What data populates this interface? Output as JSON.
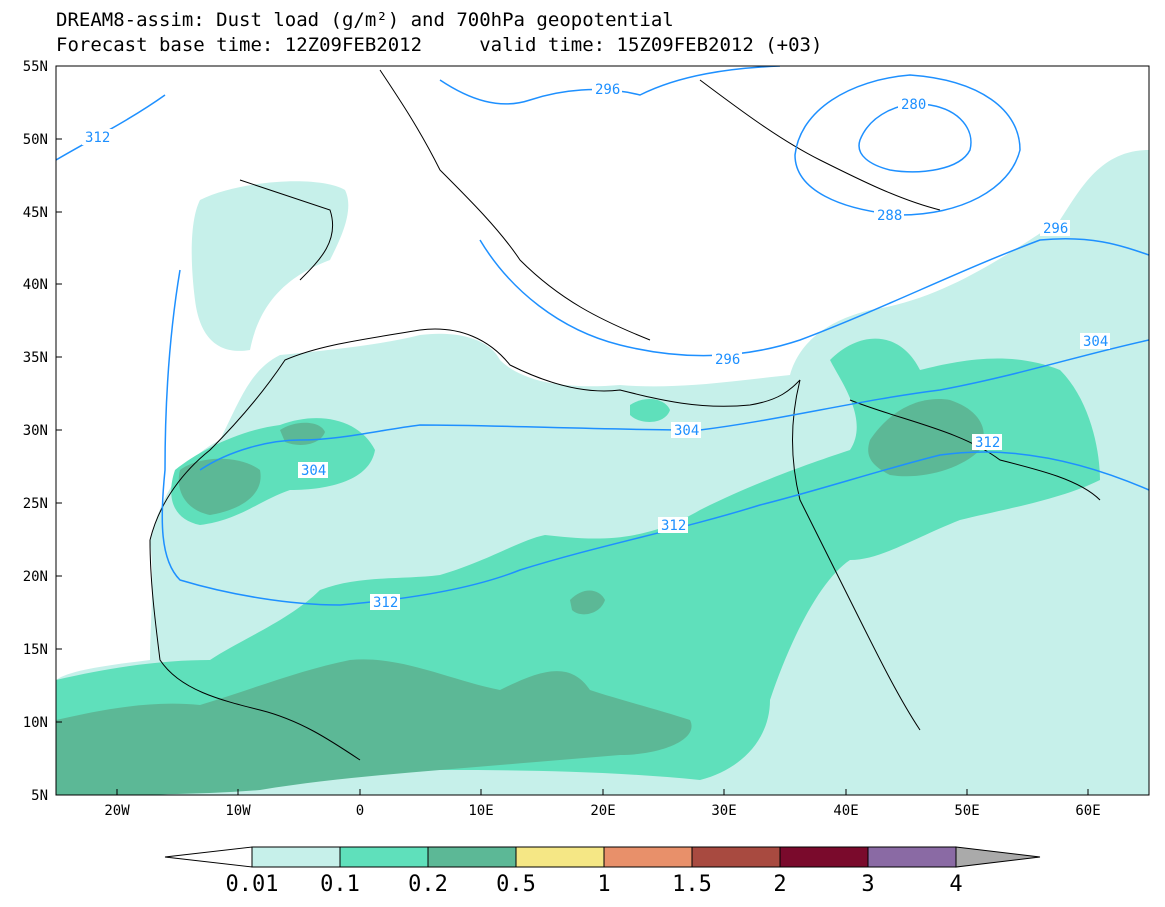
{
  "header": {
    "title_line1": "DREAM8-assim: Dust load (g/m²) and 700hPa geopotential",
    "title_line2": "Forecast base time: 12Z09FEB2012     valid time: 15Z09FEB2012 (+03)"
  },
  "map": {
    "lat_labels": [
      "55N",
      "50N",
      "45N",
      "40N",
      "35N",
      "30N",
      "25N",
      "20N",
      "15N",
      "10N",
      "5N"
    ],
    "lon_labels": [
      "20W",
      "10W",
      "0",
      "10E",
      "20E",
      "30E",
      "40E",
      "50E",
      "60E"
    ],
    "contour_labels": [
      "312",
      "296",
      "280",
      "288",
      "296",
      "296",
      "304",
      "304",
      "304",
      "312",
      "312",
      "312"
    ],
    "colors": {
      "dust_0_01": "#c6f0ea",
      "dust_0_1": "#5fe0bb",
      "dust_0_2": "#5cb896",
      "dust_0_5": "#f5e785",
      "contour": "#1e90ff"
    }
  },
  "colorbar": {
    "labels": [
      "0.01",
      "0.1",
      "0.2",
      "0.5",
      "1",
      "1.5",
      "2",
      "3",
      "4"
    ],
    "colors": [
      "#c6f0ea",
      "#5fe0bb",
      "#5cb896",
      "#f5e785",
      "#e8906a",
      "#a84a40",
      "#7a0a2c",
      "#8a6aa4",
      "#aaaaaa"
    ]
  }
}
